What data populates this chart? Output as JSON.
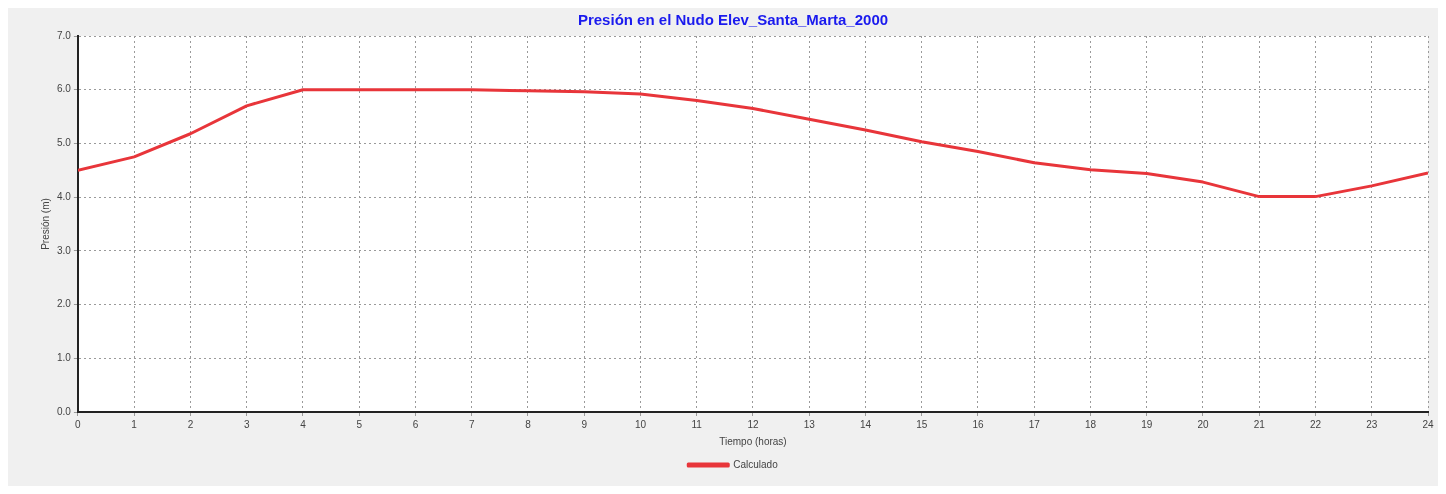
{
  "chart_data": {
    "type": "line",
    "title": "Presión en el Nudo Elev_Santa_Marta_2000",
    "xlabel": "Tiempo (horas)",
    "ylabel": "Presión (m)",
    "x": [
      0,
      1,
      2,
      3,
      4,
      5,
      6,
      7,
      8,
      9,
      10,
      11,
      12,
      13,
      14,
      15,
      16,
      17,
      18,
      19,
      20,
      21,
      22,
      23,
      24
    ],
    "series": [
      {
        "name": "Calculado",
        "color": "#e8353a",
        "values": [
          4.5,
          4.75,
          5.18,
          5.7,
          6.0,
          6.0,
          6.0,
          6.0,
          5.98,
          5.96,
          5.92,
          5.8,
          5.65,
          5.45,
          5.25,
          5.03,
          4.85,
          4.64,
          4.51,
          4.44,
          4.28,
          4.01,
          4.01,
          4.21,
          4.45
        ]
      }
    ],
    "xlim": [
      0,
      24
    ],
    "xticks": [
      0,
      1,
      2,
      3,
      4,
      5,
      6,
      7,
      8,
      9,
      10,
      11,
      12,
      13,
      14,
      15,
      16,
      17,
      18,
      19,
      20,
      21,
      22,
      23,
      24
    ],
    "ylim": [
      0,
      7
    ],
    "yticks": [
      {
        "value": 0,
        "label": "0.0"
      },
      {
        "value": 1,
        "label": "1.0"
      },
      {
        "value": 2,
        "label": "2.0"
      },
      {
        "value": 3,
        "label": "3.0"
      },
      {
        "value": 4,
        "label": "4.0"
      },
      {
        "value": 5,
        "label": "5.0"
      },
      {
        "value": 6,
        "label": "6.0"
      },
      {
        "value": 7,
        "label": "7.0"
      }
    ],
    "grid": true,
    "legend": "bottom",
    "marker": "none",
    "line_style": "solid"
  }
}
